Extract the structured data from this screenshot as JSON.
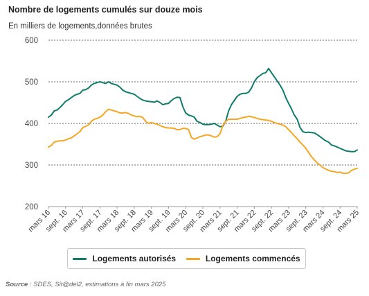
{
  "title": "Nombre de logements cumulés sur douze mois",
  "subtitle": "En milliers de logements,données brutes",
  "source": {
    "label": "Source",
    "text": " : SDES, Sit@del2, estimations à fin mars 2025"
  },
  "colors": {
    "autorises": "#0f7b6c",
    "commences": "#f5a623",
    "grid": "#333333",
    "axis_text": "#444444"
  },
  "chart_data": {
    "type": "line",
    "title": "Nombre de logements cumulés sur douze mois",
    "subtitle": "En milliers de logements,données brutes",
    "ylim": [
      200,
      600
    ],
    "yticks": [
      200,
      300,
      400,
      500,
      600
    ],
    "grid": true,
    "grid_style": "dashed horizontal",
    "legend_position": "bottom",
    "x_ticks": [
      {
        "month": 0,
        "label": "mars 16"
      },
      {
        "month": 6,
        "label": "sept. 16"
      },
      {
        "month": 12,
        "label": "mars 17"
      },
      {
        "month": 18,
        "label": "sept. 17"
      },
      {
        "month": 24,
        "label": "mars 18"
      },
      {
        "month": 30,
        "label": "sept. 18"
      },
      {
        "month": 36,
        "label": "mars 19"
      },
      {
        "month": 42,
        "label": "sept. 19"
      },
      {
        "month": 48,
        "label": "mars 20"
      },
      {
        "month": 54,
        "label": "sept. 20"
      },
      {
        "month": 60,
        "label": "mars 21"
      },
      {
        "month": 66,
        "label": "sept. 21"
      },
      {
        "month": 72,
        "label": "mars 22"
      },
      {
        "month": 78,
        "label": "sept. 22"
      },
      {
        "month": 84,
        "label": "mars 23"
      },
      {
        "month": 90,
        "label": "sept. 23"
      },
      {
        "month": 96,
        "label": "mars 24"
      },
      {
        "month": 102,
        "label": "sept. 24"
      },
      {
        "month": 108,
        "label": "mars 25"
      }
    ],
    "series": [
      {
        "name": "Logements autorisés",
        "color": "#0f7b6c",
        "values": [
          415,
          420,
          430,
          432,
          438,
          445,
          453,
          457,
          462,
          467,
          470,
          472,
          480,
          481,
          485,
          492,
          496,
          498,
          500,
          498,
          496,
          500,
          496,
          494,
          492,
          487,
          480,
          476,
          474,
          472,
          470,
          465,
          460,
          456,
          454,
          453,
          452,
          451,
          454,
          450,
          445,
          447,
          448,
          455,
          460,
          463,
          462,
          440,
          425,
          420,
          418,
          415,
          405,
          402,
          398,
          397,
          397,
          398,
          400,
          396,
          392,
          393,
          405,
          430,
          445,
          455,
          465,
          470,
          472,
          472,
          475,
          485,
          500,
          510,
          515,
          520,
          522,
          532,
          522,
          512,
          502,
          492,
          480,
          462,
          448,
          435,
          420,
          410,
          390,
          380,
          378,
          379,
          378,
          377,
          373,
          368,
          363,
          358,
          355,
          348,
          346,
          343,
          340,
          337,
          334,
          333,
          332,
          332,
          336
        ]
      },
      {
        "name": "Logements commencés",
        "color": "#f5a623",
        "values": [
          343,
          347,
          355,
          357,
          358,
          358,
          360,
          363,
          365,
          370,
          375,
          380,
          390,
          393,
          396,
          405,
          410,
          412,
          415,
          420,
          428,
          434,
          432,
          430,
          428,
          425,
          425,
          426,
          424,
          420,
          418,
          416,
          417,
          414,
          405,
          400,
          402,
          400,
          398,
          395,
          392,
          390,
          389,
          389,
          388,
          385,
          385,
          388,
          388,
          385,
          366,
          362,
          365,
          368,
          370,
          372,
          372,
          370,
          367,
          368,
          375,
          395,
          405,
          410,
          410,
          410,
          410,
          412,
          414,
          415,
          417,
          416,
          414,
          412,
          410,
          409,
          408,
          407,
          405,
          402,
          400,
          398,
          396,
          392,
          385,
          378,
          370,
          363,
          355,
          348,
          340,
          330,
          320,
          312,
          305,
          300,
          294,
          290,
          287,
          285,
          284,
          282,
          283,
          280,
          280,
          281,
          287,
          290,
          292
        ]
      }
    ]
  }
}
